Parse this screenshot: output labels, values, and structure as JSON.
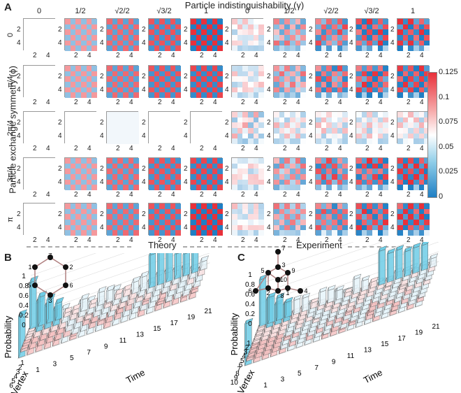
{
  "panels": {
    "a": "A",
    "b": "B",
    "c": "C"
  },
  "top_title": "Particle indistinguishability (γ)",
  "columns": [
    "0",
    "1/2",
    "√2/2",
    "√3/2",
    "1",
    "0",
    "1/2",
    "√2/2",
    "√3/2",
    "1"
  ],
  "y_title": "Particle exchange symmetry (ϕ)",
  "rows": [
    "0",
    "π/4",
    "2π/4",
    "3π/4",
    "π"
  ],
  "axis_ticks": {
    "x": [
      "2",
      "4"
    ],
    "y": [
      "2",
      "4"
    ]
  },
  "colorbar": {
    "ticks": [
      "0.125",
      "0.1",
      "0.075",
      "0.05",
      "0.025",
      "0"
    ],
    "min": 0,
    "max": 0.125
  },
  "banners": {
    "theory": "Theory",
    "experiment": "Experiment"
  },
  "panel_b": {
    "ylabel": "Probability",
    "xlabel": "Time",
    "vlabel": "Vertex",
    "prob_ticks": [
      "0",
      "0.2",
      "0.4",
      "0.6",
      "0.8",
      "1"
    ],
    "time_ticks": [
      "1",
      "3",
      "5",
      "7",
      "9",
      "11",
      "13",
      "15",
      "17",
      "19",
      "21"
    ],
    "vertex_ticks": [
      "1",
      "2",
      "3",
      "4",
      "5",
      "6"
    ],
    "graph_labels": [
      "4",
      "1",
      "2",
      "5",
      "6",
      "3"
    ]
  },
  "panel_c": {
    "ylabel": "Probability",
    "xlabel": "Time",
    "vlabel": "Vertex",
    "prob_ticks": [
      "0",
      "0.2",
      "0.4",
      "0.6",
      "0.8",
      "1"
    ],
    "time_ticks": [
      "1",
      "3",
      "5",
      "7",
      "9",
      "11",
      "13",
      "15",
      "17",
      "19",
      "21"
    ],
    "vertex_ticks": [
      "1",
      "2",
      "3",
      "4",
      "5",
      "6",
      "7",
      "8",
      "9",
      "10"
    ],
    "graph_labels": [
      "7",
      "3",
      "5",
      "9",
      "10",
      "6",
      "2",
      "8",
      "1",
      "4"
    ]
  },
  "colors": {
    "red": "#e8303a",
    "blue": "#2a86c8",
    "white": "#ffffff",
    "bar_blue": "#6fcde6",
    "bar_pink": "#f6c3c3"
  }
}
